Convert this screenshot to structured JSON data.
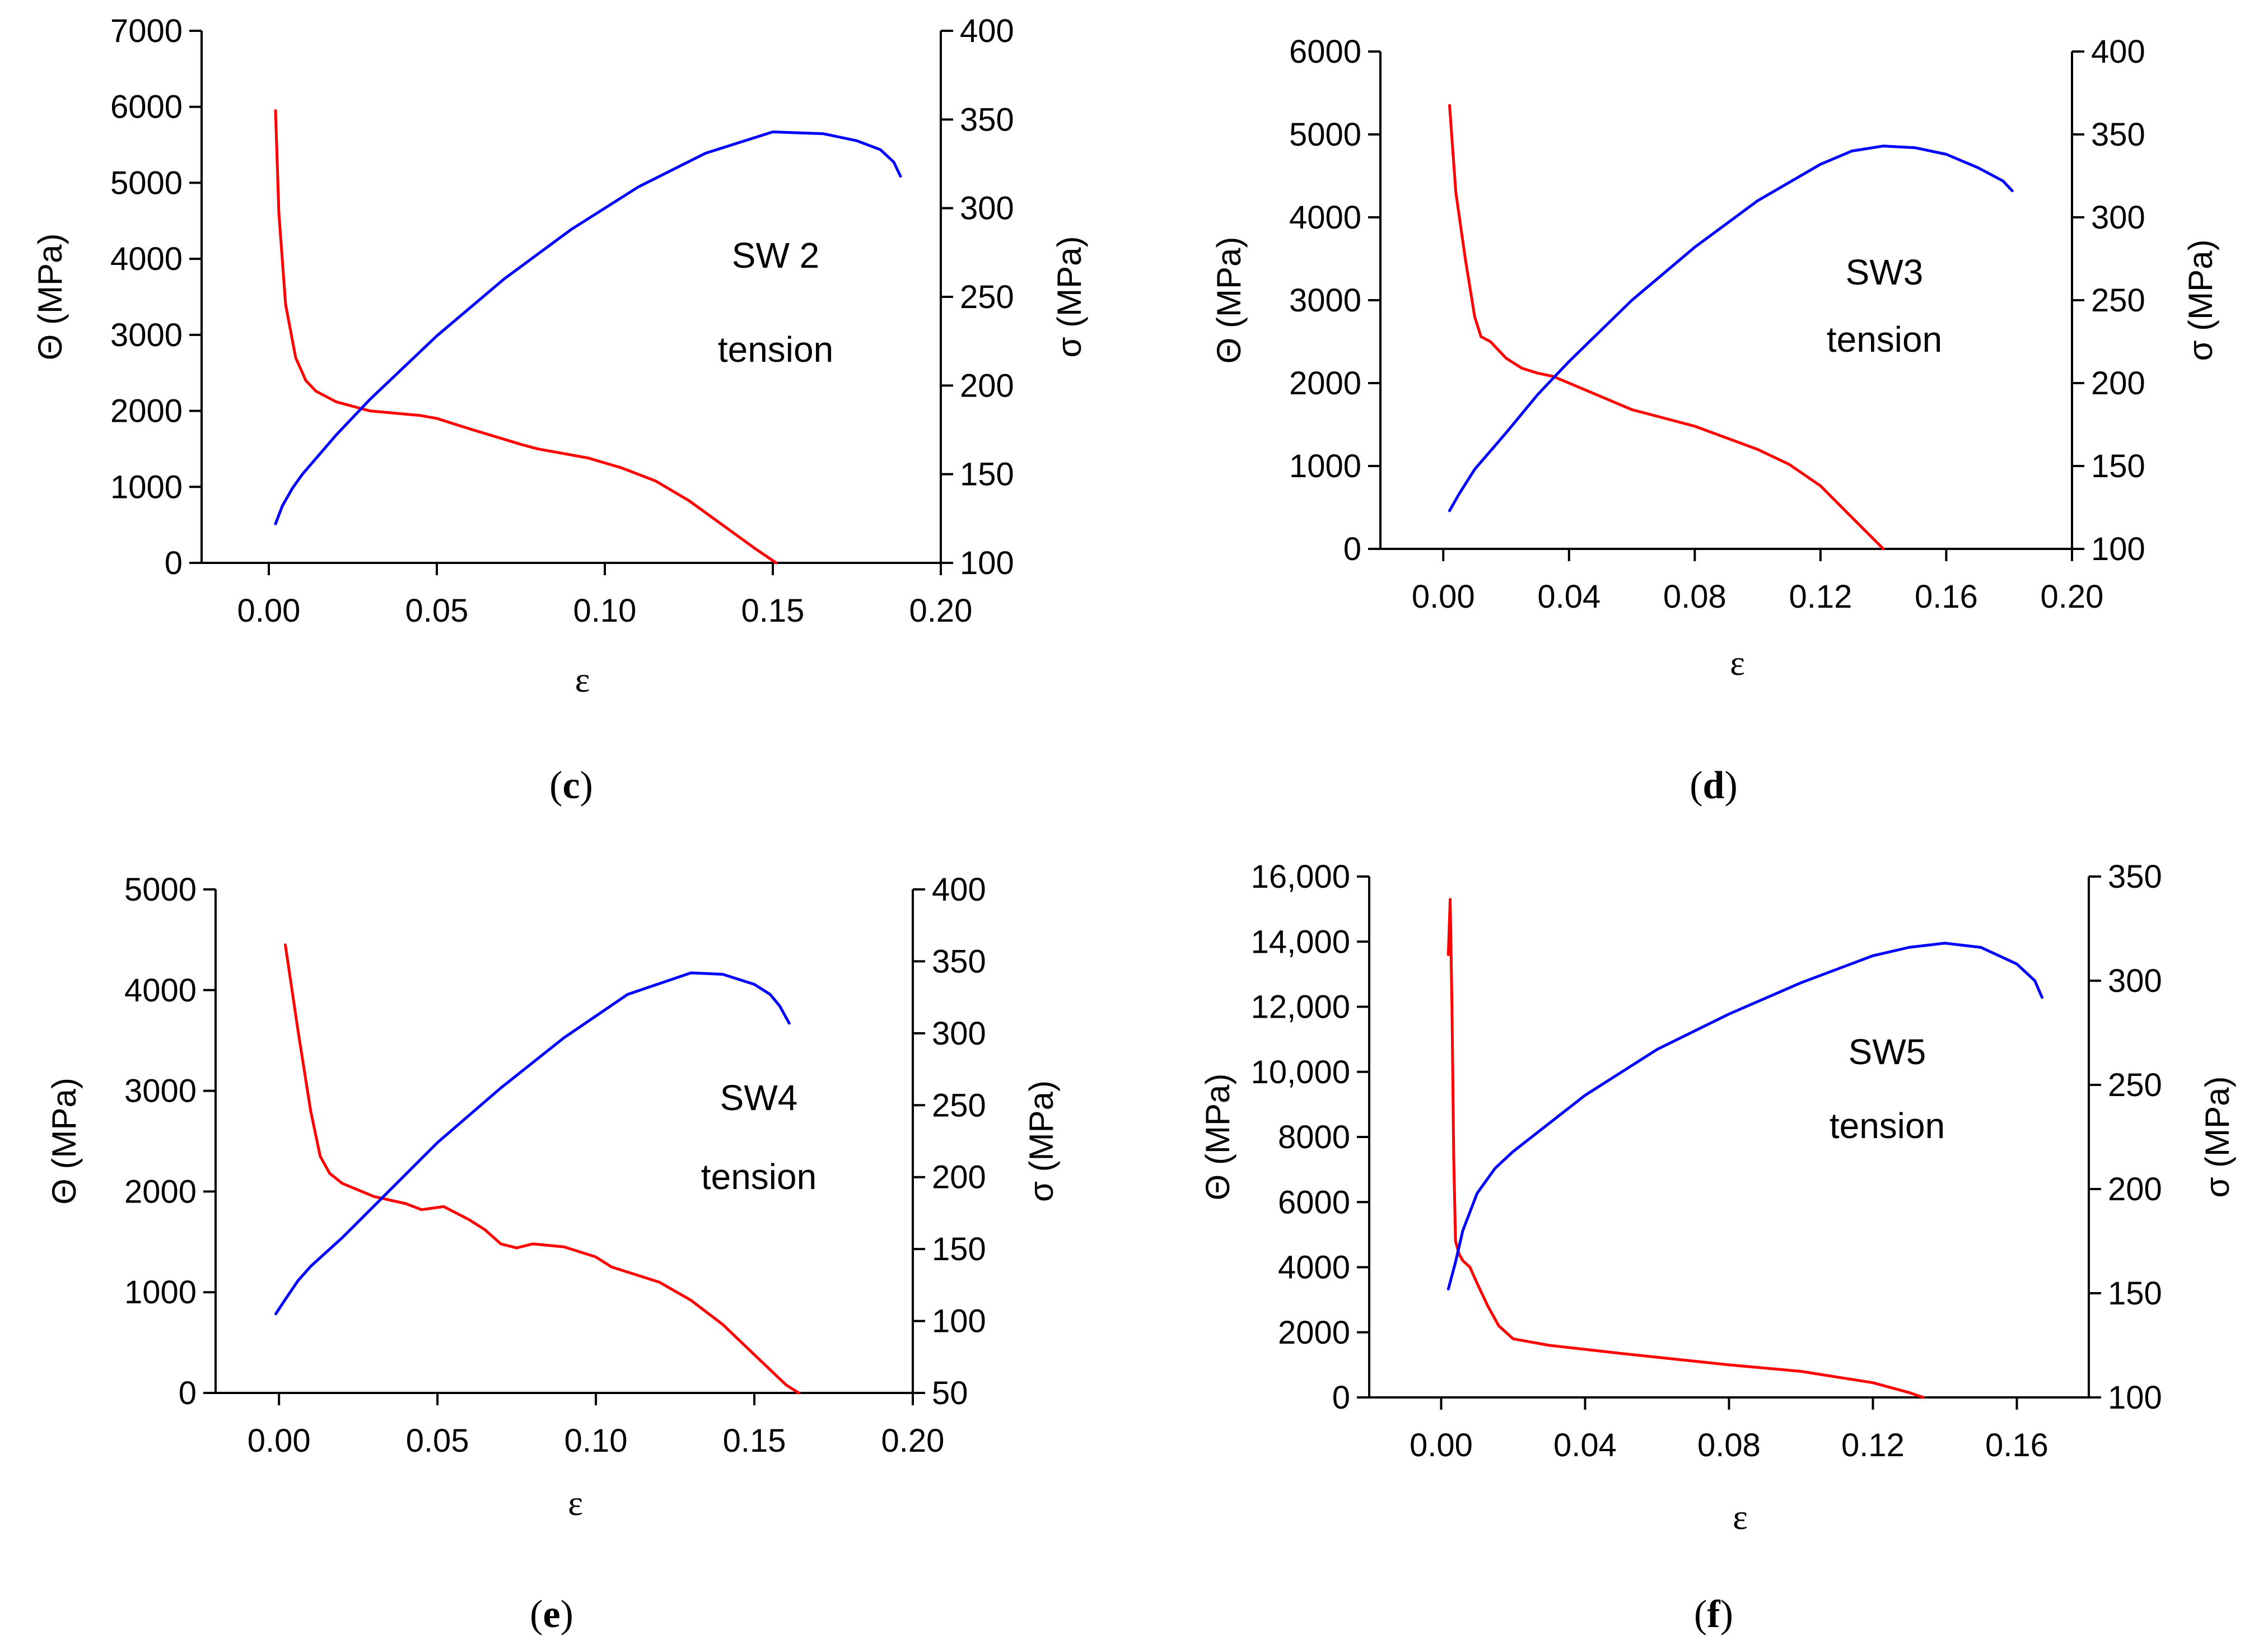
{
  "chart_data": [
    {
      "type": "line",
      "panel": "c",
      "caption": "(c)",
      "caption_letter": "c",
      "xlabel": "ε",
      "ylabel_left": "Θ (MPa)",
      "ylabel_right": "σ (MPa)",
      "x_range": [
        -0.02,
        0.2
      ],
      "y_left_range": [
        0,
        7000
      ],
      "y_right_range": [
        100,
        400
      ],
      "x_ticks": [
        0,
        0.05,
        0.1,
        0.15,
        0.2
      ],
      "x_tick_labels": [
        "0.00",
        "0.05",
        "0.10",
        "0.15",
        "0.20"
      ],
      "y_left_ticks": [
        0,
        1000,
        2000,
        3000,
        4000,
        5000,
        6000,
        7000
      ],
      "y_left_tick_labels": [
        "0",
        "1000",
        "2000",
        "3000",
        "4000",
        "5000",
        "6000",
        "7000"
      ],
      "y_right_ticks": [
        100,
        150,
        200,
        250,
        300,
        350,
        400
      ],
      "y_right_tick_labels": [
        "100",
        "150",
        "200",
        "250",
        "300",
        "350",
        "400"
      ],
      "annotations": [
        "SW 2",
        "tension"
      ],
      "series": [
        {
          "name": "Θ",
          "axis": "left",
          "color": "#ff0000",
          "x": [
            0.002,
            0.003,
            0.005,
            0.008,
            0.011,
            0.014,
            0.02,
            0.03,
            0.045,
            0.05,
            0.06,
            0.075,
            0.08,
            0.095,
            0.105,
            0.115,
            0.125,
            0.135,
            0.145,
            0.151
          ],
          "y": [
            5950,
            4600,
            3400,
            2700,
            2400,
            2260,
            2120,
            2000,
            1940,
            1900,
            1760,
            1560,
            1500,
            1380,
            1250,
            1080,
            820,
            500,
            180,
            0
          ]
        },
        {
          "name": "σ",
          "axis": "right",
          "color": "#0000ff",
          "x": [
            0.002,
            0.004,
            0.007,
            0.01,
            0.02,
            0.03,
            0.05,
            0.07,
            0.09,
            0.11,
            0.13,
            0.15,
            0.165,
            0.175,
            0.182,
            0.186,
            0.188
          ],
          "y": [
            122,
            132,
            142,
            150,
            172,
            192,
            228,
            260,
            288,
            312,
            331,
            343,
            342,
            338,
            333,
            326,
            318
          ]
        }
      ]
    },
    {
      "type": "line",
      "panel": "d",
      "caption": "(d)",
      "caption_letter": "d",
      "xlabel": "ε",
      "ylabel_left": "Θ (MPa)",
      "ylabel_right": "σ (MPa)",
      "x_range": [
        -0.02,
        0.2
      ],
      "y_left_range": [
        0,
        6000
      ],
      "y_right_range": [
        100,
        400
      ],
      "x_ticks": [
        0,
        0.04,
        0.08,
        0.12,
        0.16,
        0.2
      ],
      "x_tick_labels": [
        "0.00",
        "0.04",
        "0.08",
        "0.12",
        "0.16",
        "0.20"
      ],
      "y_left_ticks": [
        0,
        1000,
        2000,
        3000,
        4000,
        5000,
        6000
      ],
      "y_left_tick_labels": [
        "0",
        "1000",
        "2000",
        "3000",
        "4000",
        "5000",
        "6000"
      ],
      "y_right_ticks": [
        100,
        150,
        200,
        250,
        300,
        350,
        400
      ],
      "y_right_tick_labels": [
        "100",
        "150",
        "200",
        "250",
        "300",
        "350",
        "400"
      ],
      "annotations": [
        "SW3",
        "tension"
      ],
      "series": [
        {
          "name": "Θ",
          "axis": "left",
          "color": "#ff0000",
          "x": [
            0.002,
            0.004,
            0.007,
            0.01,
            0.012,
            0.015,
            0.02,
            0.025,
            0.03,
            0.035,
            0.045,
            0.06,
            0.08,
            0.09,
            0.1,
            0.11,
            0.12,
            0.13,
            0.14
          ],
          "y": [
            5350,
            4300,
            3500,
            2800,
            2560,
            2500,
            2300,
            2180,
            2120,
            2080,
            1920,
            1680,
            1480,
            1340,
            1200,
            1020,
            760,
            380,
            0
          ]
        },
        {
          "name": "σ",
          "axis": "right",
          "color": "#0000ff",
          "x": [
            0.002,
            0.005,
            0.01,
            0.02,
            0.03,
            0.04,
            0.06,
            0.08,
            0.1,
            0.12,
            0.13,
            0.14,
            0.15,
            0.16,
            0.17,
            0.178,
            0.181
          ],
          "y": [
            123,
            133,
            148,
            170,
            193,
            213,
            250,
            282,
            310,
            332,
            340,
            343,
            342,
            338,
            330,
            322,
            316
          ]
        }
      ]
    },
    {
      "type": "line",
      "panel": "e",
      "caption": "(e)",
      "caption_letter": "e",
      "xlabel": "ε",
      "ylabel_left": "Θ (MPa)",
      "ylabel_right": "σ (MPa)",
      "x_range": [
        -0.02,
        0.2
      ],
      "y_left_range": [
        0,
        5000
      ],
      "y_right_range": [
        50,
        400
      ],
      "x_ticks": [
        0,
        0.05,
        0.1,
        0.15,
        0.2
      ],
      "x_tick_labels": [
        "0.00",
        "0.05",
        "0.10",
        "0.15",
        "0.20"
      ],
      "y_left_ticks": [
        0,
        1000,
        2000,
        3000,
        4000,
        5000
      ],
      "y_left_tick_labels": [
        "0",
        "1000",
        "2000",
        "3000",
        "4000",
        "5000"
      ],
      "y_right_ticks": [
        50,
        100,
        150,
        200,
        250,
        300,
        350,
        400
      ],
      "y_right_tick_labels": [
        "50",
        "100",
        "150",
        "200",
        "250",
        "300",
        "350",
        "400"
      ],
      "annotations": [
        "SW4",
        "tension"
      ],
      "series": [
        {
          "name": "Θ",
          "axis": "left",
          "color": "#ff0000",
          "x": [
            0.002,
            0.006,
            0.01,
            0.013,
            0.016,
            0.02,
            0.03,
            0.04,
            0.045,
            0.052,
            0.06,
            0.065,
            0.07,
            0.075,
            0.08,
            0.09,
            0.1,
            0.105,
            0.11,
            0.12,
            0.13,
            0.14,
            0.15,
            0.16,
            0.164
          ],
          "y": [
            4450,
            3600,
            2800,
            2350,
            2180,
            2080,
            1950,
            1880,
            1820,
            1850,
            1720,
            1620,
            1480,
            1440,
            1480,
            1450,
            1350,
            1250,
            1200,
            1100,
            920,
            680,
            380,
            80,
            0
          ]
        },
        {
          "name": "σ",
          "axis": "right",
          "color": "#0000ff",
          "x": [
            -0.001,
            0.002,
            0.006,
            0.01,
            0.02,
            0.03,
            0.05,
            0.07,
            0.09,
            0.11,
            0.13,
            0.14,
            0.15,
            0.155,
            0.158,
            0.161
          ],
          "y": [
            105,
            115,
            128,
            138,
            158,
            180,
            224,
            262,
            297,
            327,
            342,
            341,
            334,
            327,
            319,
            307
          ]
        }
      ]
    },
    {
      "type": "line",
      "panel": "f",
      "caption": "(f)",
      "caption_letter": "f",
      "xlabel": "ε",
      "ylabel_left": "Θ (MPa)",
      "ylabel_right": "σ (MPa)",
      "x_range": [
        -0.02,
        0.18
      ],
      "y_left_range": [
        0,
        16000
      ],
      "y_right_range": [
        100,
        350
      ],
      "x_ticks": [
        0,
        0.04,
        0.08,
        0.12,
        0.16
      ],
      "x_tick_labels": [
        "0.00",
        "0.04",
        "0.08",
        "0.12",
        "0.16"
      ],
      "y_left_ticks": [
        0,
        2000,
        4000,
        6000,
        8000,
        10000,
        12000,
        14000,
        16000
      ],
      "y_left_tick_labels": [
        "0",
        "2000",
        "4000",
        "6000",
        "8000",
        "10,000",
        "12,000",
        "14,000",
        "16,000"
      ],
      "y_right_ticks": [
        100,
        150,
        200,
        250,
        300,
        350
      ],
      "y_right_tick_labels": [
        "100",
        "150",
        "200",
        "250",
        "300",
        "350"
      ],
      "annotations": [
        "SW5",
        "tension"
      ],
      "series": [
        {
          "name": "Θ",
          "axis": "left",
          "color": "#ff0000",
          "x": [
            0.002,
            0.0025,
            0.003,
            0.0035,
            0.004,
            0.005,
            0.006,
            0.008,
            0.01,
            0.013,
            0.016,
            0.02,
            0.03,
            0.05,
            0.08,
            0.1,
            0.12,
            0.13,
            0.134
          ],
          "y": [
            13600,
            15300,
            12000,
            7300,
            4800,
            4400,
            4200,
            4000,
            3500,
            2800,
            2200,
            1800,
            1600,
            1350,
            1000,
            800,
            450,
            150,
            0
          ]
        },
        {
          "name": "σ",
          "axis": "right",
          "color": "#0000ff",
          "x": [
            0.002,
            0.004,
            0.006,
            0.01,
            0.015,
            0.02,
            0.04,
            0.06,
            0.08,
            0.1,
            0.12,
            0.13,
            0.14,
            0.15,
            0.16,
            0.165,
            0.167
          ],
          "y": [
            152,
            165,
            180,
            198,
            210,
            218,
            245,
            267,
            284,
            299,
            312,
            316,
            318,
            316,
            308,
            300,
            292
          ]
        }
      ]
    }
  ]
}
